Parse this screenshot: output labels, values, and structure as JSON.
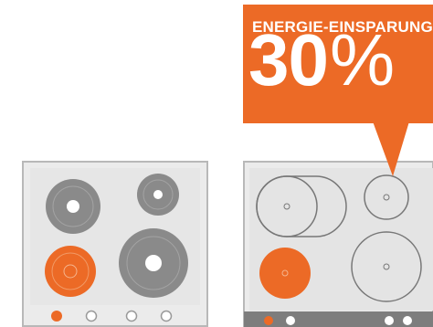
{
  "callout": {
    "title": "ENERGIE-EINSPARUNG",
    "number": "30",
    "unit": "%"
  },
  "colors": {
    "accent": "#ec6a26",
    "panel_fill": "#ebebeb",
    "panel_border": "#b8b8b8",
    "plate_gray": "#8a8a8a",
    "outline_gray": "#777777",
    "white": "#ffffff"
  }
}
